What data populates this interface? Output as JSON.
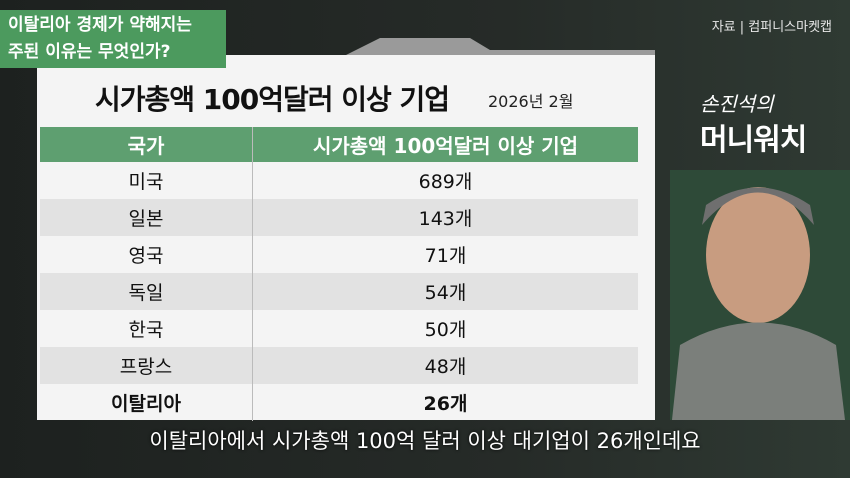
{
  "header": {
    "topic": [
      "이탈리아 경제가 약해지는",
      "주된 이유는 무엇인가?"
    ],
    "source": "자료 | 컴퍼니스마켓캡"
  },
  "table": {
    "title": "시가총액 100억달러 이상 기업",
    "date": "2026년 2월",
    "columns": [
      "국가",
      "시가총액 100억달러 이상 기업"
    ],
    "rows": [
      [
        "미국",
        "689개"
      ],
      [
        "일본",
        "143개"
      ],
      [
        "영국",
        "71개"
      ],
      [
        "독일",
        "54개"
      ],
      [
        "한국",
        "50개"
      ],
      [
        "프랑스",
        "48개"
      ],
      [
        "이탈리아",
        "26개"
      ]
    ]
  },
  "logo": [
    "손진석의",
    "머니워치"
  ],
  "caption": "이탈리아에서 시가총액 100억 달러 이상 대기업이 26개인데요"
}
